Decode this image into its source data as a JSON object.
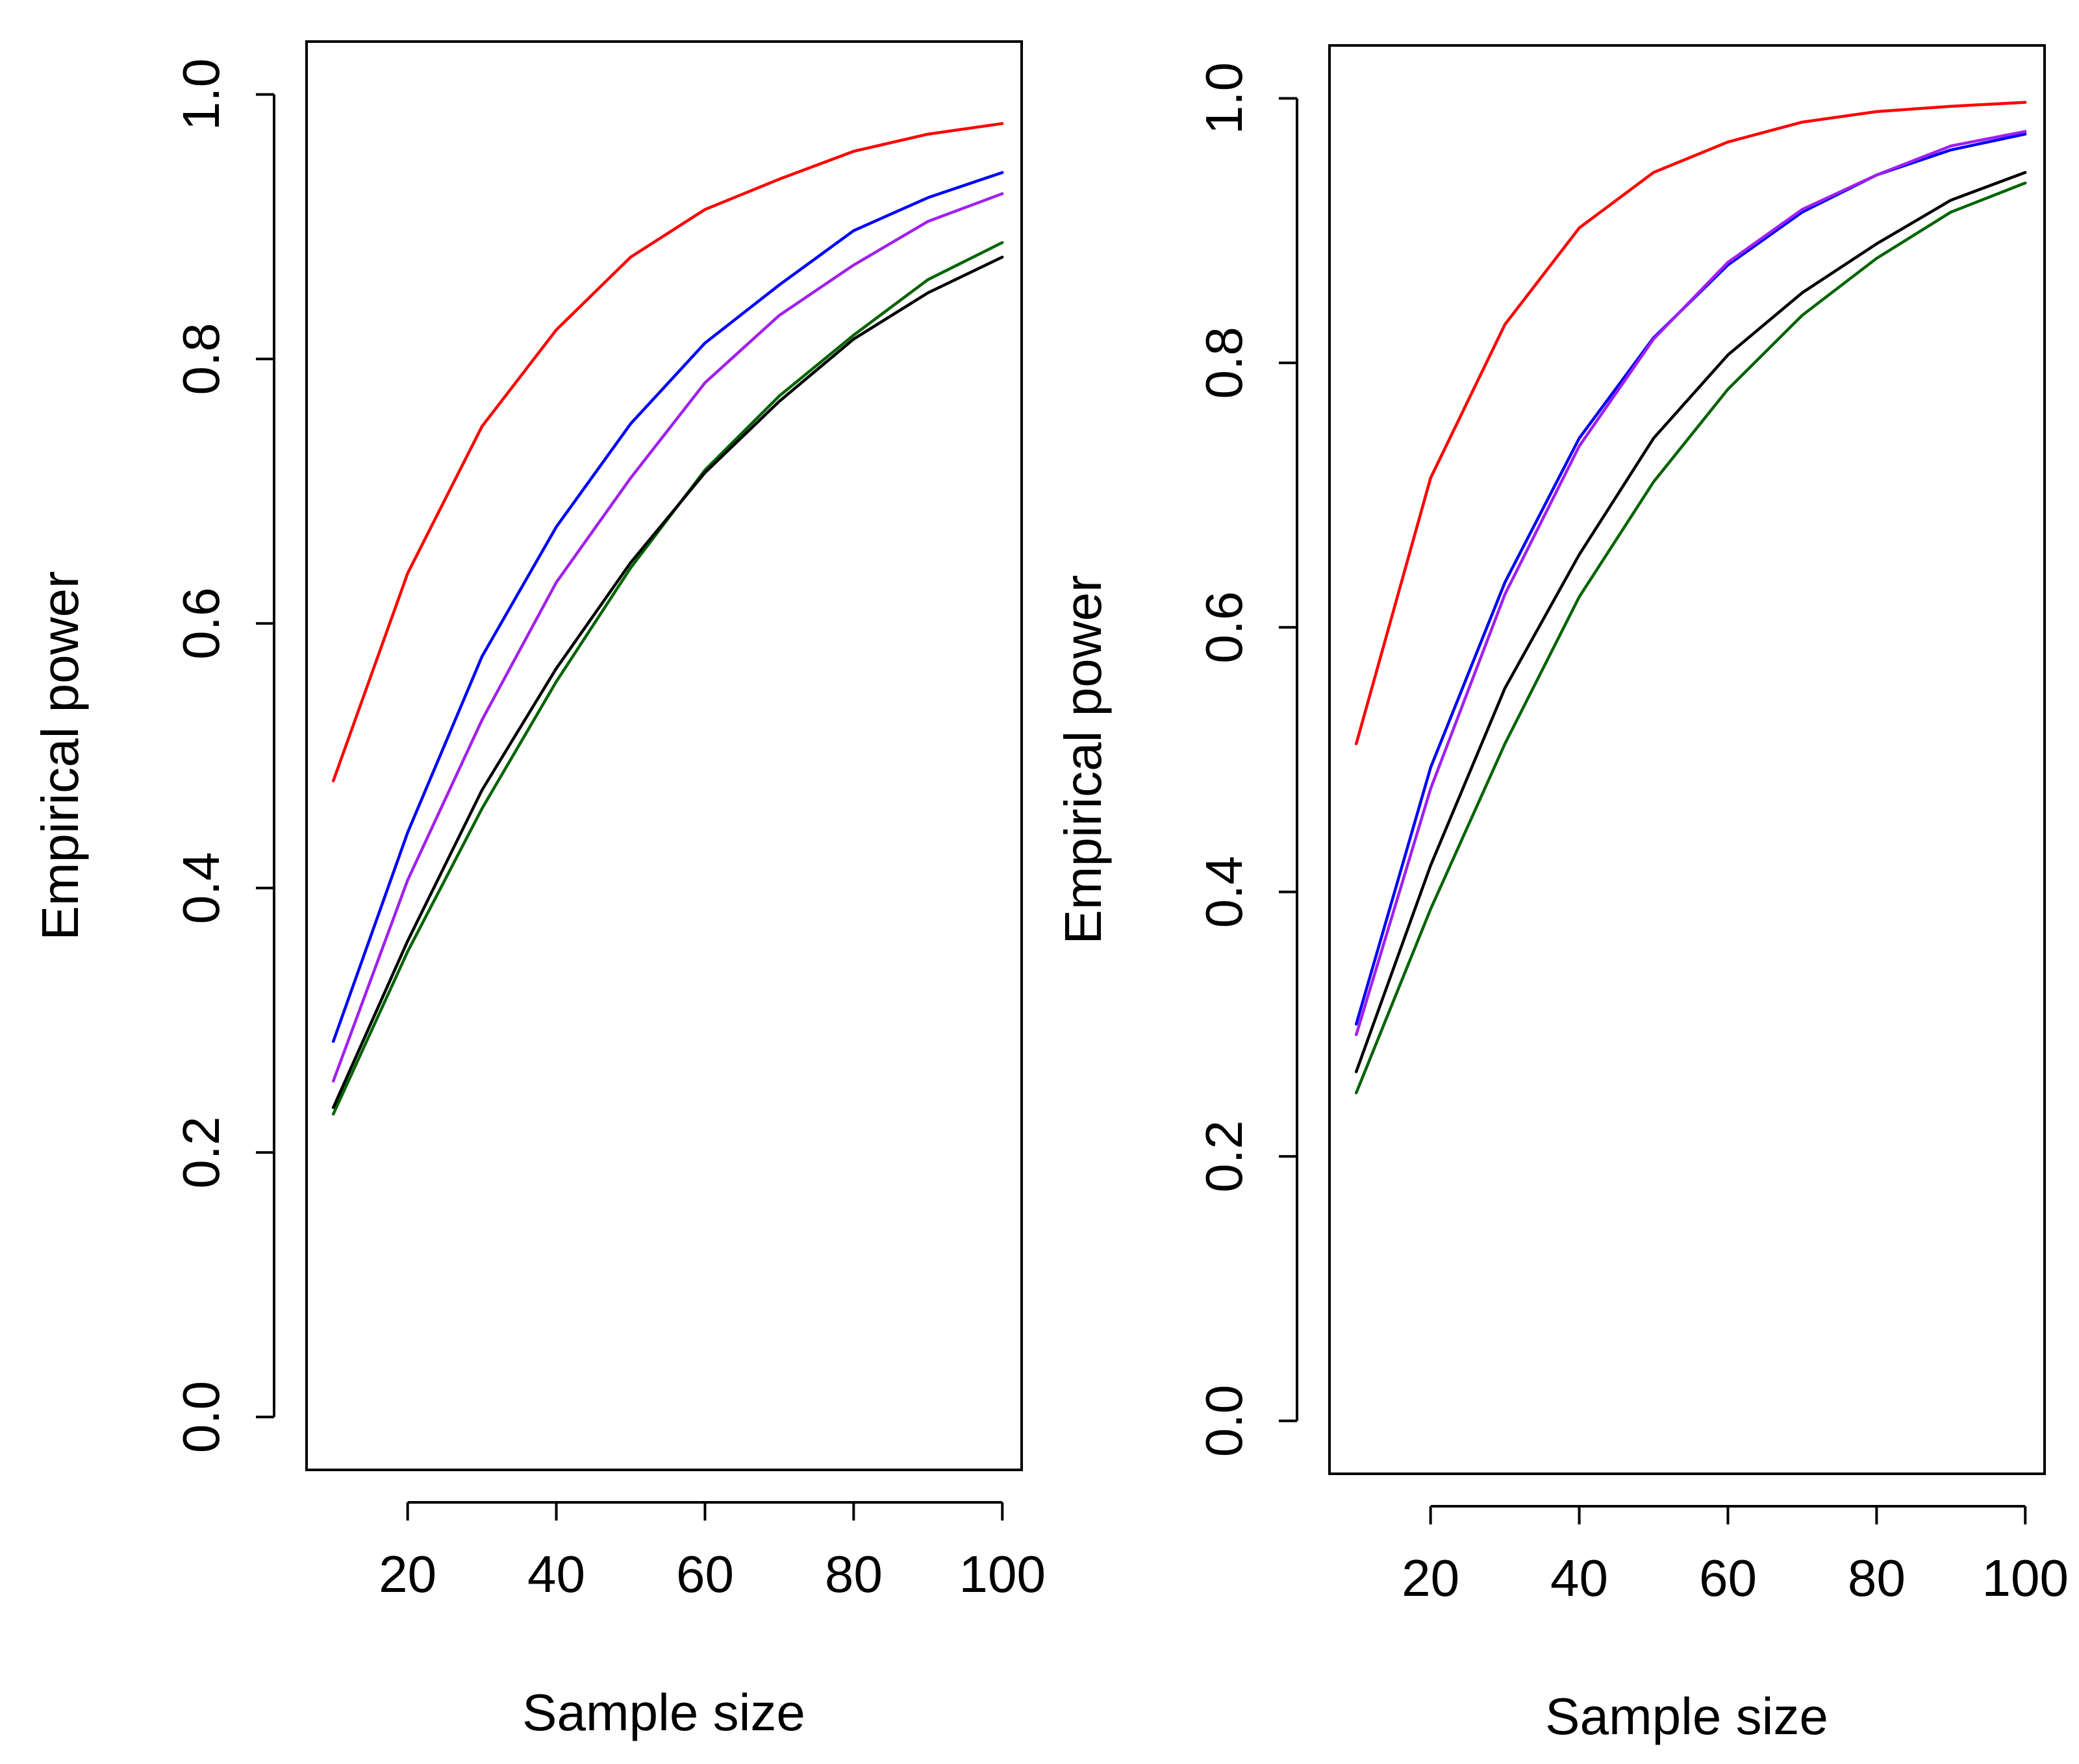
{
  "chart_data": [
    {
      "type": "line",
      "title": "",
      "xlabel": "Sample size",
      "ylabel": "Empirical power",
      "xlim": [
        6.4,
        102.6
      ],
      "ylim": [
        -0.04,
        1.04
      ],
      "xticks": [
        20,
        40,
        60,
        80,
        100
      ],
      "xtick_labels": [
        "20",
        "40",
        "60",
        "80",
        "100"
      ],
      "yticks": [
        0.0,
        0.2,
        0.4,
        0.6,
        0.8,
        1.0
      ],
      "ytick_labels": [
        "0.0",
        "0.2",
        "0.4",
        "0.6",
        "0.8",
        "1.0"
      ],
      "grid": false,
      "x": [
        10,
        20,
        30,
        40,
        50,
        60,
        70,
        80,
        90,
        100
      ],
      "series": [
        {
          "name": "red",
          "color": "#ff0000",
          "values": [
            0.481,
            0.638,
            0.749,
            0.822,
            0.877,
            0.913,
            0.936,
            0.957,
            0.97,
            0.978
          ]
        },
        {
          "name": "blue",
          "color": "#0000ff",
          "values": [
            0.284,
            0.442,
            0.575,
            0.673,
            0.751,
            0.812,
            0.856,
            0.897,
            0.922,
            0.941
          ]
        },
        {
          "name": "purple",
          "color": "#a020f0",
          "values": [
            0.254,
            0.406,
            0.527,
            0.631,
            0.71,
            0.782,
            0.833,
            0.871,
            0.904,
            0.925
          ]
        },
        {
          "name": "dark green",
          "color": "#006400",
          "values": [
            0.229,
            0.352,
            0.46,
            0.556,
            0.642,
            0.716,
            0.772,
            0.818,
            0.86,
            0.888
          ]
        },
        {
          "name": "black",
          "color": "#000000",
          "values": [
            0.234,
            0.36,
            0.474,
            0.566,
            0.646,
            0.714,
            0.768,
            0.815,
            0.85,
            0.877
          ]
        }
      ]
    },
    {
      "type": "line",
      "title": "",
      "xlabel": "Sample size",
      "ylabel": "Empirical power",
      "xlim": [
        6.4,
        102.6
      ],
      "ylim": [
        -0.04,
        1.04
      ],
      "xticks": [
        20,
        40,
        60,
        80,
        100
      ],
      "xtick_labels": [
        "20",
        "40",
        "60",
        "80",
        "100"
      ],
      "yticks": [
        0.0,
        0.2,
        0.4,
        0.6,
        0.8,
        1.0
      ],
      "ytick_labels": [
        "0.0",
        "0.2",
        "0.4",
        "0.6",
        "0.8",
        "1.0"
      ],
      "grid": false,
      "x": [
        10,
        20,
        30,
        40,
        50,
        60,
        70,
        80,
        90,
        100
      ],
      "series": [
        {
          "name": "red",
          "color": "#ff0000",
          "values": [
            0.512,
            0.713,
            0.829,
            0.902,
            0.944,
            0.967,
            0.982,
            0.99,
            0.994,
            0.997
          ]
        },
        {
          "name": "blue",
          "color": "#0000ff",
          "values": [
            0.3,
            0.494,
            0.634,
            0.743,
            0.819,
            0.874,
            0.914,
            0.942,
            0.961,
            0.973
          ]
        },
        {
          "name": "purple",
          "color": "#a020f0",
          "values": [
            0.292,
            0.478,
            0.625,
            0.737,
            0.818,
            0.876,
            0.916,
            0.942,
            0.964,
            0.975
          ]
        },
        {
          "name": "black",
          "color": "#000000",
          "values": [
            0.264,
            0.42,
            0.554,
            0.655,
            0.743,
            0.806,
            0.853,
            0.89,
            0.923,
            0.944
          ]
        },
        {
          "name": "dark green",
          "color": "#006400",
          "values": [
            0.248,
            0.387,
            0.512,
            0.623,
            0.71,
            0.78,
            0.836,
            0.879,
            0.914,
            0.936
          ]
        }
      ]
    }
  ]
}
